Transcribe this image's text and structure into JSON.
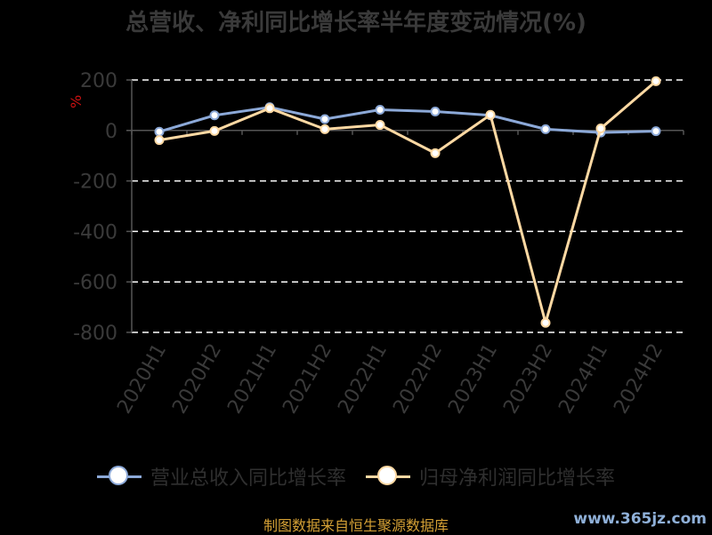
{
  "title": "总营收、净利同比增长率半年度变动情况(%)",
  "unit_label": "%",
  "source_text": "制图数据来自恒生聚源数据库",
  "watermark_text": "www.365jz.com",
  "colors": {
    "background": "#000000",
    "revenue": "#8ca9d8",
    "profit": "#ffd9a3",
    "grid": "#ffffff",
    "axis": "#555555",
    "text": "#3a3a3a"
  },
  "chart_data": {
    "type": "line",
    "title": "总营收、净利同比增长率半年度变动情况(%)",
    "categories": [
      "2020H1",
      "2020H2",
      "2021H1",
      "2021H2",
      "2022H1",
      "2022H2",
      "2023H1",
      "2023H2",
      "2024H1",
      "2024H2"
    ],
    "y_ticks": [
      200,
      0,
      -200,
      -400,
      -600,
      -800
    ],
    "ylim": [
      -800,
      200
    ],
    "ylabel": "%",
    "grid": true,
    "legend_position": "bottom",
    "series": [
      {
        "name": "营业总收入同比增长率",
        "values": [
          -5,
          60,
          92,
          45,
          82,
          75,
          60,
          5,
          -8,
          -3
        ]
      },
      {
        "name": "归母净利润同比增长率",
        "values": [
          -38,
          -2,
          88,
          5,
          22,
          -90,
          62,
          -762,
          8,
          195
        ]
      }
    ]
  }
}
